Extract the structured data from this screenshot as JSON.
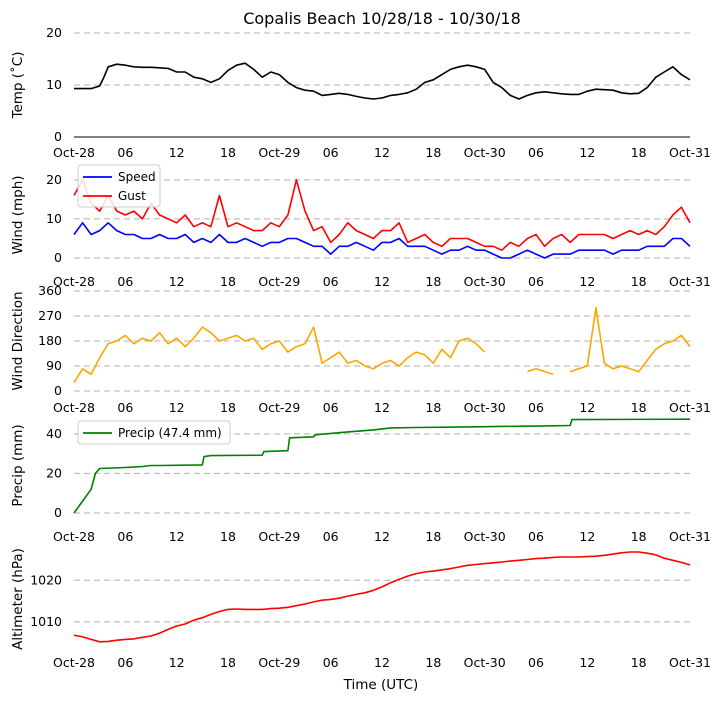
{
  "chart_data": {
    "title": "Copalis Beach 10/28/18 - 10/30/18",
    "xlabel": "Time (UTC)",
    "x_tick_labels": [
      "Oct-28",
      "06",
      "12",
      "18",
      "Oct-29",
      "06",
      "12",
      "18",
      "Oct-30",
      "06",
      "12",
      "18",
      "Oct-31"
    ],
    "x_range_hours": [
      0,
      72
    ],
    "panels": [
      {
        "name": "temperature",
        "type": "line",
        "ylabel": "Temp (˚C)",
        "ylim": [
          0,
          20
        ],
        "yticks": [
          "0",
          "10",
          "20"
        ],
        "series": [
          {
            "name": "Temp",
            "color": "#000000",
            "x": [
              0,
              2,
              3,
              3.5,
              4,
              5,
              6,
              7,
              8,
              9,
              10,
              11,
              12,
              13,
              14,
              15,
              16,
              17,
              18,
              19,
              20,
              21,
              22,
              23,
              24,
              25,
              26,
              27,
              28,
              29,
              30,
              31,
              32,
              33,
              34,
              35,
              36,
              37,
              38,
              39,
              40,
              41,
              42,
              43,
              44,
              45,
              46,
              47,
              48,
              49,
              50,
              51,
              52,
              53,
              54,
              55,
              56,
              57,
              58,
              59,
              60,
              61,
              62,
              63,
              64,
              65,
              66,
              67,
              68,
              69,
              70,
              71,
              72
            ],
            "y": [
              9.3,
              9.3,
              9.8,
              11.5,
              13.5,
              14,
              13.8,
              13.5,
              13.4,
              13.4,
              13.3,
              13.2,
              12.5,
              12.5,
              11.5,
              11.2,
              10.5,
              11.2,
              12.8,
              13.8,
              14.2,
              13,
              11.5,
              12.5,
              12,
              10.5,
              9.5,
              9,
              8.8,
              8,
              8.2,
              8.4,
              8.2,
              7.8,
              7.5,
              7.3,
              7.5,
              8,
              8.2,
              8.5,
              9.2,
              10.5,
              11,
              12,
              13,
              13.5,
              13.8,
              13.5,
              13,
              10.5,
              9.5,
              8,
              7.3,
              8,
              8.5,
              8.7,
              8.5,
              8.3,
              8.2,
              8.2,
              8.8,
              9.2,
              9.1,
              9,
              8.5,
              8.3,
              8.4,
              9.5,
              11.5,
              12.5,
              13.5,
              12,
              11
            ]
          }
        ]
      },
      {
        "name": "wind_speed",
        "type": "line",
        "ylabel": "Wind (mph)",
        "ylim": [
          0,
          22
        ],
        "yticks": [
          "0",
          "10",
          "20"
        ],
        "legend": [
          "Speed",
          "Gust"
        ],
        "series": [
          {
            "name": "Speed",
            "color": "#0000ff",
            "x": [
              0,
              1,
              2,
              3,
              4,
              5,
              6,
              7,
              8,
              9,
              10,
              11,
              12,
              13,
              14,
              15,
              16,
              17,
              18,
              19,
              20,
              21,
              22,
              23,
              24,
              25,
              26,
              27,
              28,
              29,
              30,
              31,
              32,
              33,
              34,
              35,
              36,
              37,
              38,
              39,
              40,
              41,
              42,
              43,
              44,
              45,
              46,
              47,
              48,
              49,
              50,
              51,
              52,
              53,
              54,
              55,
              56,
              57,
              58,
              59,
              60,
              61,
              62,
              63,
              64,
              65,
              66,
              67,
              68,
              69,
              70,
              71,
              72
            ],
            "y": [
              6,
              9,
              6,
              7,
              9,
              7,
              6,
              6,
              5,
              5,
              6,
              5,
              5,
              6,
              4,
              5,
              4,
              6,
              4,
              4,
              5,
              4,
              3,
              4,
              4,
              5,
              5,
              4,
              3,
              3,
              1,
              3,
              3,
              4,
              3,
              2,
              4,
              4,
              5,
              3,
              3,
              3,
              2,
              1,
              2,
              2,
              3,
              2,
              2,
              1,
              0,
              0,
              1,
              2,
              1,
              0,
              1,
              1,
              1,
              2,
              2,
              2,
              2,
              1,
              2,
              2,
              2,
              3,
              3,
              3,
              5,
              5,
              3
            ]
          },
          {
            "name": "Gust",
            "color": "#ff0000",
            "x": [
              0,
              1,
              2,
              3,
              4,
              5,
              6,
              7,
              8,
              9,
              10,
              11,
              12,
              13,
              14,
              15,
              16,
              17,
              18,
              19,
              20,
              21,
              22,
              23,
              24,
              25,
              26,
              27,
              28,
              29,
              30,
              31,
              32,
              33,
              34,
              35,
              36,
              37,
              38,
              39,
              40,
              41,
              42,
              43,
              44,
              45,
              46,
              47,
              48,
              49,
              50,
              51,
              52,
              53,
              54,
              55,
              56,
              57,
              58,
              59,
              60,
              61,
              62,
              63,
              64,
              65,
              66,
              67,
              68,
              69,
              70,
              71,
              72
            ],
            "y": [
              16,
              20,
              14,
              12,
              16,
              12,
              11,
              12,
              10,
              14,
              11,
              10,
              9,
              11,
              8,
              9,
              8,
              16,
              8,
              9,
              8,
              7,
              7,
              9,
              8,
              11,
              20,
              12,
              7,
              8,
              4,
              6,
              9,
              7,
              6,
              5,
              7,
              7,
              9,
              4,
              5,
              6,
              4,
              3,
              5,
              5,
              5,
              4,
              3,
              3,
              2,
              4,
              3,
              5,
              6,
              3,
              5,
              6,
              4,
              6,
              6,
              6,
              6,
              5,
              6,
              7,
              6,
              7,
              6,
              8,
              11,
              13,
              9
            ]
          }
        ]
      },
      {
        "name": "wind_direction",
        "type": "line",
        "ylabel": "Wind Direction",
        "ylim": [
          0,
          360
        ],
        "yticks": [
          "0",
          "90",
          "180",
          "270",
          "360"
        ],
        "series": [
          {
            "name": "Direction",
            "color": "#ffa500",
            "x": [
              0,
              1,
              2,
              3,
              4,
              5,
              6,
              7,
              8,
              9,
              10,
              11,
              12,
              13,
              14,
              15,
              16,
              17,
              18,
              19,
              20,
              21,
              22,
              23,
              24,
              25,
              26,
              27,
              28,
              29,
              30,
              31,
              32,
              33,
              34,
              35,
              36,
              37,
              38,
              39,
              40,
              41,
              42,
              43,
              44,
              45,
              46,
              47,
              48,
              49,
              50,
              51,
              52,
              53,
              54,
              55,
              56,
              57,
              58,
              59,
              60,
              61,
              62,
              63,
              64,
              65,
              66,
              67,
              68,
              69,
              70,
              71,
              72
            ],
            "y": [
              30,
              80,
              60,
              120,
              170,
              180,
              200,
              170,
              190,
              180,
              210,
              170,
              190,
              160,
              190,
              230,
              210,
              180,
              190,
              200,
              180,
              190,
              150,
              170,
              180,
              140,
              160,
              170,
              230,
              100,
              120,
              140,
              100,
              110,
              90,
              80,
              100,
              110,
              90,
              120,
              140,
              130,
              100,
              150,
              120,
              180,
              190,
              170,
              140,
              null,
              null,
              null,
              null,
              70,
              80,
              70,
              60,
              null,
              70,
              80,
              90,
              300,
              100,
              80,
              90,
              80,
              70,
              110,
              150,
              170,
              180,
              200,
              160
            ]
          }
        ]
      },
      {
        "name": "precipitation",
        "type": "line",
        "ylabel": "Precip (mm)",
        "ylim": [
          0,
          48
        ],
        "yticks": [
          "0",
          "20",
          "40"
        ],
        "legend": [
          "Precip (47.4 mm)"
        ],
        "series": [
          {
            "name": "Precip (47.4 mm)",
            "color": "#008000",
            "x": [
              0,
              1,
              2,
              2.5,
              3,
              6,
              8,
              9,
              10,
              15,
              15.2,
              16,
              22,
              22.2,
              25,
              25.2,
              28,
              28.2,
              32,
              35,
              37,
              40,
              46,
              55,
              58,
              58.2,
              72
            ],
            "y": [
              0,
              6,
              12,
              20,
              22.5,
              23,
              23.5,
              24,
              24,
              24.3,
              28.5,
              29,
              29.2,
              31,
              31.5,
              38,
              38.5,
              39.5,
              41,
              42,
              43,
              43.2,
              43.5,
              44,
              44.2,
              47.2,
              47.4
            ]
          }
        ]
      },
      {
        "name": "altimeter",
        "type": "line",
        "ylabel": "Altimeter (hPa)",
        "ylim": [
          1003,
          1028
        ],
        "yticks": [
          "1010",
          "1020"
        ],
        "series": [
          {
            "name": "Altimeter",
            "color": "#ff0000",
            "x": [
              0,
              1,
              2,
              3,
              4,
              5,
              6,
              7,
              8,
              9,
              10,
              11,
              12,
              13,
              14,
              15,
              16,
              17,
              18,
              19,
              20,
              21,
              22,
              23,
              24,
              25,
              26,
              27,
              28,
              29,
              30,
              31,
              32,
              33,
              34,
              35,
              36,
              37,
              38,
              39,
              40,
              41,
              42,
              43,
              44,
              45,
              46,
              47,
              48,
              49,
              50,
              51,
              52,
              53,
              54,
              55,
              56,
              57,
              58,
              59,
              60,
              61,
              62,
              63,
              64,
              65,
              66,
              67,
              68,
              69,
              70,
              71,
              72
            ],
            "y": [
              1006.8,
              1006.4,
              1005.8,
              1005.2,
              1005.3,
              1005.6,
              1005.8,
              1005.9,
              1006.3,
              1006.6,
              1007.3,
              1008.2,
              1009,
              1009.5,
              1010.4,
              1011,
              1011.8,
              1012.5,
              1013,
              1013.1,
              1013,
              1013,
              1013,
              1013.2,
              1013.3,
              1013.5,
              1013.9,
              1014.3,
              1014.8,
              1015.2,
              1015.4,
              1015.7,
              1016.2,
              1016.6,
              1017,
              1017.6,
              1018.4,
              1019.4,
              1020.2,
              1021,
              1021.6,
              1022,
              1022.2,
              1022.5,
              1022.8,
              1023.2,
              1023.6,
              1023.8,
              1024,
              1024.2,
              1024.4,
              1024.6,
              1024.8,
              1025,
              1025.2,
              1025.3,
              1025.5,
              1025.6,
              1025.6,
              1025.6,
              1025.7,
              1025.8,
              1026,
              1026.3,
              1026.6,
              1026.8,
              1026.8,
              1026.5,
              1026.1,
              1025.3,
              1024.8,
              1024.3,
              1023.7
            ]
          }
        ]
      }
    ]
  }
}
